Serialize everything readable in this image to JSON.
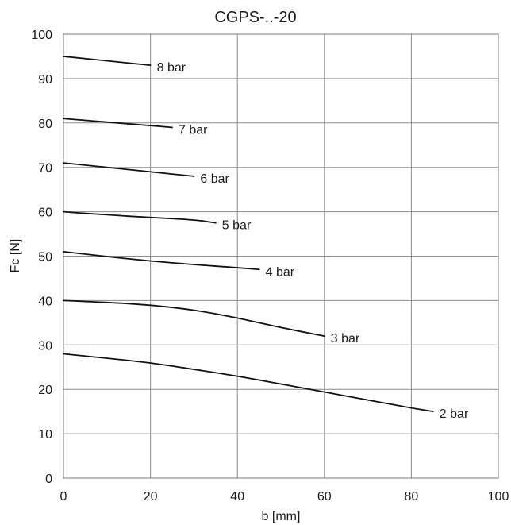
{
  "chart_data": {
    "type": "line",
    "title": "CGPS-..-20",
    "xlabel": "b [mm]",
    "ylabel": "Fc [N]",
    "xlim": [
      0,
      100
    ],
    "ylim": [
      0,
      100
    ],
    "xticks": [
      0,
      20,
      40,
      60,
      80,
      100
    ],
    "yticks": [
      0,
      10,
      20,
      30,
      40,
      50,
      60,
      70,
      80,
      90,
      100
    ],
    "grid": true,
    "series": [
      {
        "name": "8 bar",
        "x": [
          0,
          10,
          20
        ],
        "y": [
          95,
          94,
          93
        ]
      },
      {
        "name": "7 bar",
        "x": [
          0,
          10,
          20,
          25
        ],
        "y": [
          81,
          80.2,
          79.4,
          79
        ]
      },
      {
        "name": "6 bar",
        "x": [
          0,
          10,
          20,
          30
        ],
        "y": [
          71,
          70,
          69,
          68
        ]
      },
      {
        "name": "5 bar",
        "x": [
          0,
          10,
          20,
          30,
          35
        ],
        "y": [
          60,
          59.3,
          58.7,
          58.2,
          57.5
        ]
      },
      {
        "name": "4 bar",
        "x": [
          0,
          10,
          20,
          30,
          40,
          45
        ],
        "y": [
          51,
          49.9,
          48.9,
          48.1,
          47.4,
          47
        ]
      },
      {
        "name": "3 bar",
        "x": [
          0,
          10,
          20,
          30,
          40,
          50,
          60
        ],
        "y": [
          40,
          39.6,
          39,
          37.9,
          36.1,
          33.9,
          32
        ]
      },
      {
        "name": "2 bar",
        "x": [
          0,
          10,
          20,
          30,
          40,
          50,
          60,
          70,
          80,
          85
        ],
        "y": [
          28,
          27,
          26,
          24.5,
          23,
          21.2,
          19.4,
          17.6,
          15.8,
          15
        ]
      }
    ]
  }
}
